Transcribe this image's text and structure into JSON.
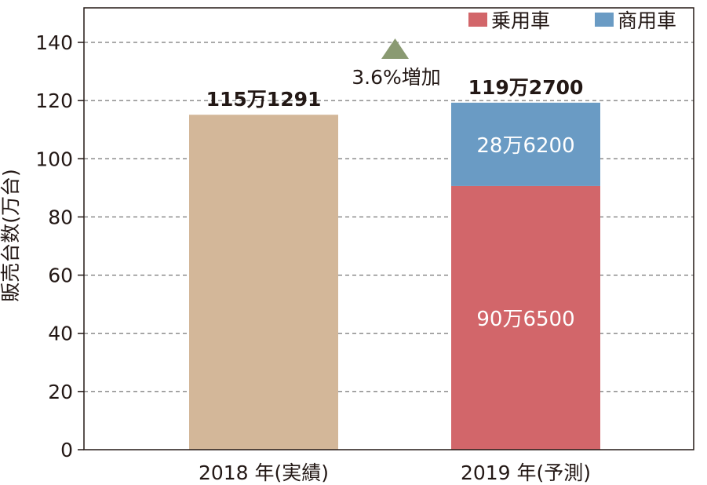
{
  "chart_data": {
    "type": "bar",
    "stacked": true,
    "categories": [
      "2018 年(実績)",
      "2019 年(予測)"
    ],
    "ylabel": "販売台数(万台)",
    "ylim": [
      0,
      140
    ],
    "yticks": [
      0,
      20,
      40,
      60,
      80,
      100,
      120,
      140
    ],
    "grid": true,
    "legend_position": "top-right",
    "bars": [
      {
        "category": "2018 年(実績)",
        "total_label": "115万1291",
        "segments": [
          {
            "value": 115.1291,
            "color": "#d3b799"
          }
        ]
      },
      {
        "category": "2019 年(予測)",
        "total_label": "119万2700",
        "segments": [
          {
            "series": "乗用車",
            "value": 90.65,
            "label": "90万6500",
            "color": "#d2666a"
          },
          {
            "series": "商用車",
            "value": 28.62,
            "label": "28万6200",
            "color": "#6a9bc4"
          }
        ]
      }
    ],
    "legend": [
      {
        "name": "乗用車",
        "color": "#d2666a"
      },
      {
        "name": "商用車",
        "color": "#6a9bc4"
      }
    ],
    "annotation": {
      "text": "3.6%増加",
      "marker": "up-triangle",
      "color": "#8a9a72"
    }
  }
}
